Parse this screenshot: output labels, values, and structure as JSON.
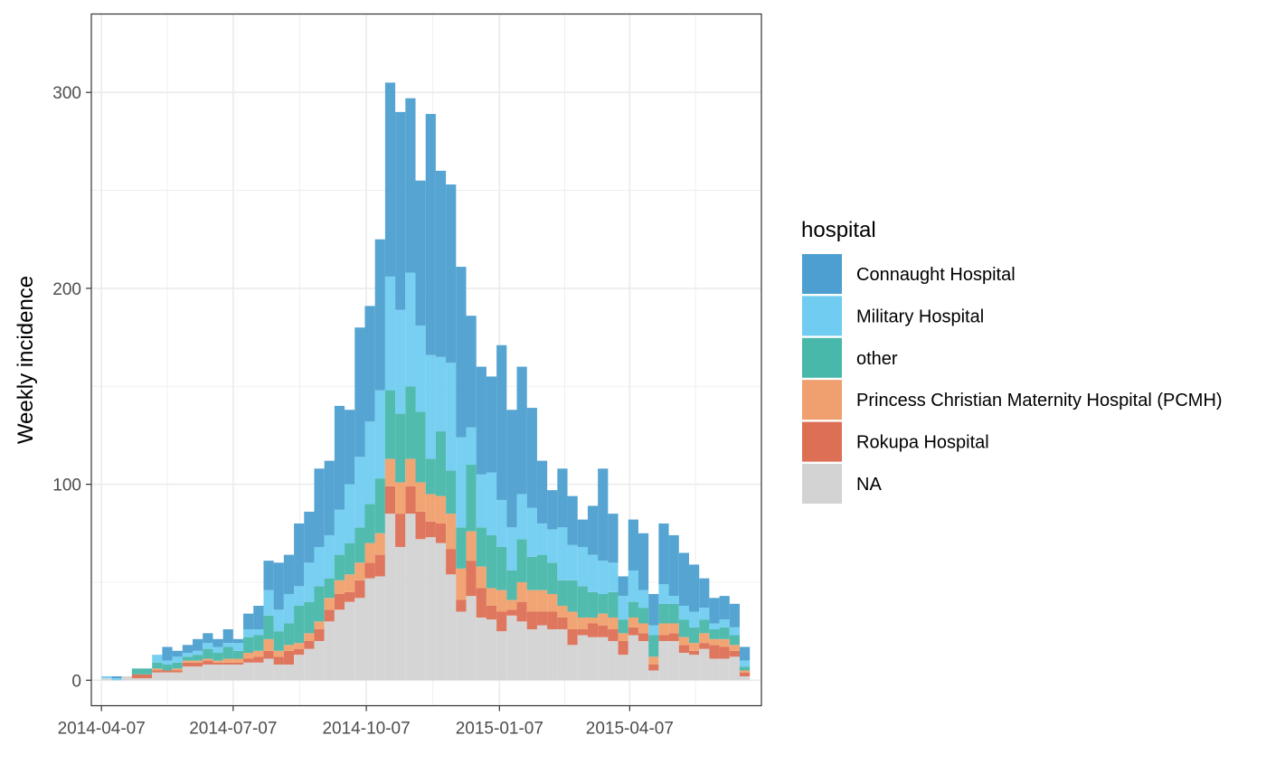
{
  "chart_data": {
    "type": "bar",
    "stacked": true,
    "title": "",
    "xlabel": "",
    "ylabel": "Weekly incidence",
    "ylim": [
      -13,
      340
    ],
    "y_ticks": [
      0,
      100,
      200,
      300
    ],
    "x_ticks": [
      "2014-04-07",
      "2014-07-07",
      "2014-10-07",
      "2015-01-07",
      "2015-04-07"
    ],
    "x_range": [
      "2014-03-31",
      "2015-07-07"
    ],
    "x_start": "2014-04-07",
    "bin_days": 7,
    "grid": true,
    "legend_position": "right",
    "legend_title": "hospital",
    "series": [
      {
        "name": "NA",
        "color": "#D3D3D3",
        "values": [
          1,
          0,
          2,
          1,
          1,
          4,
          4,
          4,
          7,
          7,
          8,
          8,
          8,
          8,
          9,
          9,
          11,
          8,
          8,
          13,
          16,
          20,
          30,
          36,
          40,
          42,
          52,
          53,
          85,
          68,
          85,
          72,
          73,
          70,
          54,
          35,
          43,
          32,
          31,
          25,
          33,
          30,
          26,
          28,
          26,
          26,
          18,
          23,
          22,
          22,
          20,
          13,
          23,
          20,
          5,
          20,
          20,
          14,
          13,
          16,
          11,
          11,
          12,
          2
        ]
      },
      {
        "name": "Rokupa Hospital",
        "color": "#DD6F55",
        "values": [
          0,
          0,
          0,
          2,
          2,
          1,
          1,
          1,
          2,
          2,
          2,
          1,
          1,
          1,
          2,
          3,
          4,
          4,
          7,
          3,
          4,
          6,
          6,
          8,
          5,
          9,
          8,
          11,
          14,
          17,
          14,
          14,
          8,
          10,
          13,
          6,
          18,
          15,
          7,
          10,
          3,
          10,
          9,
          7,
          9,
          6,
          8,
          3,
          7,
          6,
          6,
          7,
          4,
          4,
          3,
          3,
          4,
          4,
          2,
          3,
          7,
          6,
          3,
          2
        ]
      },
      {
        "name": "Princess Christian Maternity Hospital (PCMH)",
        "color": "#F0A06E",
        "values": [
          0,
          0,
          0,
          0,
          0,
          1,
          0,
          1,
          1,
          1,
          1,
          1,
          2,
          2,
          3,
          3,
          6,
          3,
          3,
          3,
          4,
          4,
          6,
          7,
          9,
          9,
          10,
          11,
          14,
          16,
          14,
          15,
          14,
          14,
          18,
          16,
          15,
          11,
          9,
          11,
          5,
          10,
          11,
          11,
          9,
          6,
          9,
          6,
          3,
          6,
          6,
          4,
          5,
          5,
          4,
          6,
          5,
          4,
          4,
          5,
          3,
          4,
          3,
          1
        ]
      },
      {
        "name": "other",
        "color": "#48B8AA",
        "values": [
          0,
          0,
          0,
          3,
          3,
          3,
          3,
          3,
          2,
          3,
          5,
          4,
          6,
          4,
          8,
          8,
          12,
          10,
          11,
          19,
          16,
          18,
          10,
          13,
          16,
          18,
          20,
          28,
          35,
          35,
          37,
          36,
          18,
          33,
          22,
          21,
          34,
          20,
          27,
          22,
          15,
          22,
          17,
          18,
          16,
          13,
          16,
          16,
          13,
          10,
          13,
          7,
          8,
          8,
          11,
          10,
          10,
          9,
          8,
          7,
          5,
          6,
          5,
          2
        ]
      },
      {
        "name": "Military Hospital",
        "color": "#70CCF0",
        "values": [
          1,
          1,
          0,
          0,
          0,
          4,
          2,
          3,
          2,
          2,
          3,
          3,
          2,
          4,
          4,
          3,
          13,
          11,
          15,
          10,
          20,
          20,
          22,
          23,
          30,
          36,
          42,
          45,
          58,
          53,
          58,
          44,
          53,
          38,
          55,
          46,
          19,
          27,
          32,
          24,
          22,
          23,
          25,
          16,
          17,
          27,
          18,
          20,
          19,
          17,
          15,
          12,
          16,
          9,
          5,
          10,
          4,
          7,
          8,
          6,
          3,
          4,
          4,
          3
        ]
      },
      {
        "name": "Connaught Hospital",
        "color": "#4C9FD0",
        "values": [
          0,
          1,
          0,
          0,
          0,
          0,
          7,
          3,
          4,
          6,
          5,
          4,
          7,
          2,
          8,
          12,
          15,
          24,
          20,
          32,
          26,
          40,
          38,
          53,
          38,
          66,
          59,
          77,
          99,
          101,
          89,
          74,
          123,
          95,
          91,
          87,
          57,
          55,
          49,
          79,
          60,
          65,
          51,
          32,
          20,
          30,
          25,
          14,
          25,
          47,
          25,
          10,
          26,
          29,
          16,
          31,
          31,
          27,
          24,
          15,
          13,
          12,
          12,
          7
        ]
      }
    ],
    "legend_order": [
      "Connaught Hospital",
      "Military Hospital",
      "other",
      "Princess Christian Maternity Hospital (PCMH)",
      "Rokupa Hospital",
      "NA"
    ]
  }
}
